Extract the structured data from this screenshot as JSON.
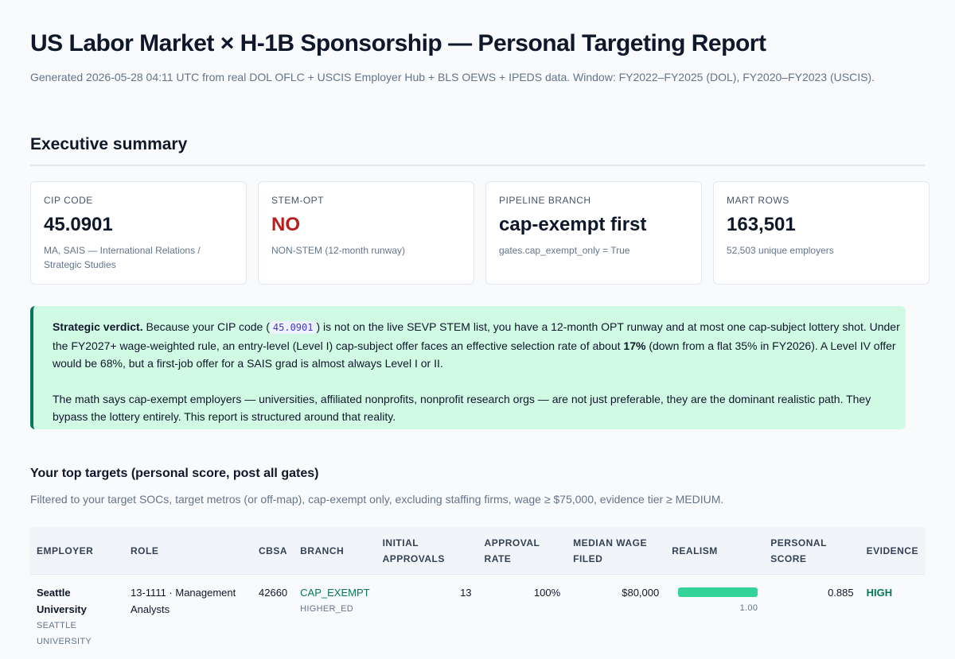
{
  "header": {
    "title": "US Labor Market × H-1B Sponsorship — Personal Targeting Report",
    "subtitle": "Generated 2026-05-28 04:11 UTC from real DOL OFLC + USCIS Employer Hub + BLS OEWS + IPEDS data. Window: FY2022–FY2025 (DOL), FY2020–FY2023 (USCIS)."
  },
  "summary": {
    "heading": "Executive summary",
    "cards": [
      {
        "label": "CIP CODE",
        "value": "45.0901",
        "note": "MA, SAIS — International Relations / Strategic Studies"
      },
      {
        "label": "STEM-OPT",
        "value": "NO",
        "note": "NON-STEM (12-month runway)"
      },
      {
        "label": "PIPELINE BRANCH",
        "value": "cap-exempt first",
        "note": "gates.cap_exempt_only = True"
      },
      {
        "label": "MART ROWS",
        "value": "163,501",
        "note": "52,503 unique employers"
      }
    ]
  },
  "verdict": {
    "lead": "Strategic verdict.",
    "p1a": " Because your CIP code (",
    "code": "45.0901",
    "p1b": ") is not on the live SEVP STEM list, you have a 12-month OPT runway and at most one cap-subject lottery shot. Under the FY2027+ wage-weighted rule, an entry-level (Level I) cap-subject offer faces an effective selection rate of about ",
    "rate": "17%",
    "p1c": " (down from a flat 35% in FY2026). A Level IV offer would be 68%, but a first-job offer for a SAIS grad is almost always Level I or II.",
    "p2": "The math says cap-exempt employers — universities, affiliated nonprofits, nonprofit research orgs — are not just preferable, they are the dominant realistic path. They bypass the lottery entirely. This report is structured around that reality."
  },
  "targets": {
    "heading": "Your top targets (personal score, post all gates)",
    "filter": "Filtered to your target SOCs, target metros (or off-map), cap-exempt only, excluding staffing firms, wage ≥ $75,000, evidence tier ≥ MEDIUM.",
    "table": {
      "columns": [
        "EMPLOYER",
        "ROLE",
        "CBSA",
        "BRANCH",
        "INITIAL APPROVALS",
        "APPROVAL RATE",
        "MEDIAN WAGE FILED",
        "REALISM",
        "PERSONAL SCORE",
        "EVIDENCE"
      ],
      "rows": [
        {
          "employer": "Seattle University",
          "employer_sub": "SEATTLE UNIVERSITY",
          "role": "13-1111 · Management Analysts",
          "cbsa": "42660",
          "branch": "CAP_EXEMPT",
          "branch_sub": "HIGHER_ED",
          "initial_approvals": 13,
          "approval_rate": "100%",
          "median_wage": "$80,000",
          "realism": {
            "value": 1,
            "label": "1.00"
          },
          "personal_score": 0.885,
          "evidence": "HIGH"
        }
      ]
    }
  }
}
